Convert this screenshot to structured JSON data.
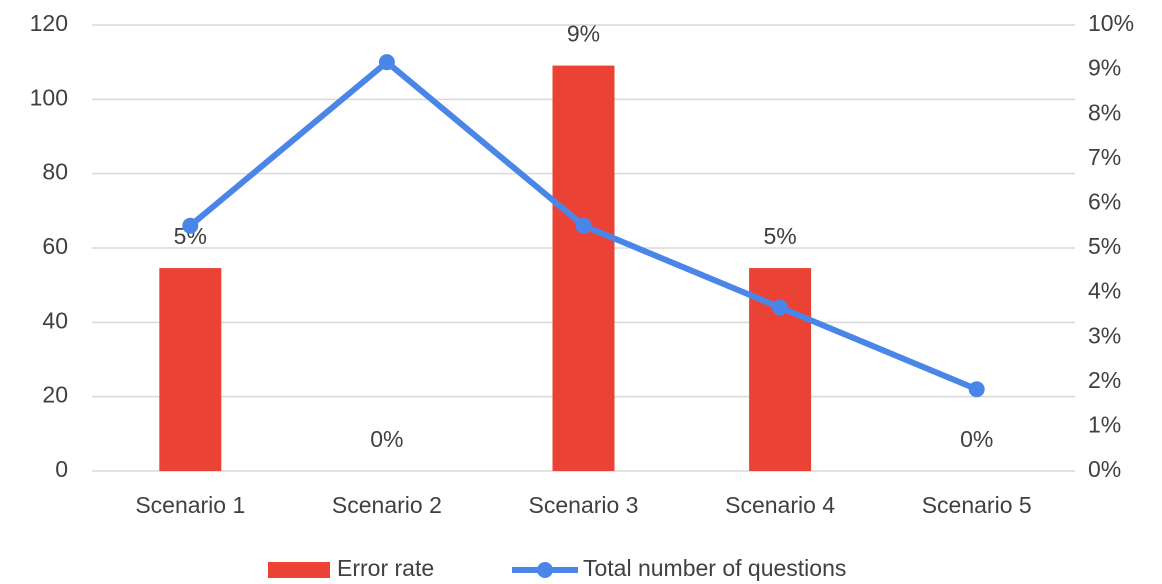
{
  "chart_data": {
    "type": "bar-line",
    "categories": [
      "Scenario 1",
      "Scenario 2",
      "Scenario 3",
      "Scenario 4",
      "Scenario 5"
    ],
    "series": [
      {
        "name": "Error rate",
        "type": "bar",
        "axis": "y2",
        "color": "#ea4335",
        "values": [
          4.55,
          0,
          9.09,
          4.55,
          0
        ],
        "value_labels": [
          "5%",
          "0%",
          "9%",
          "5%",
          "0%"
        ]
      },
      {
        "name": "Total number of questions",
        "type": "line",
        "color": "#4a86e8",
        "values": [
          66,
          110,
          66,
          44,
          22
        ]
      }
    ],
    "ylim": [
      0,
      120
    ],
    "yticks": [
      0,
      20,
      40,
      60,
      80,
      100,
      120
    ],
    "y2lim": [
      0,
      10
    ],
    "y2ticks": [
      {
        "value": 0,
        "label": "0%"
      },
      {
        "value": 1,
        "label": "1%"
      },
      {
        "value": 2,
        "label": "2%"
      },
      {
        "value": 3,
        "label": "3%"
      },
      {
        "value": 4,
        "label": "4%"
      },
      {
        "value": 5,
        "label": "5%"
      },
      {
        "value": 6,
        "label": "6%"
      },
      {
        "value": 7,
        "label": "7%"
      },
      {
        "value": 8,
        "label": "8%"
      },
      {
        "value": 9,
        "label": "9%"
      },
      {
        "value": 10,
        "label": "10%"
      }
    ],
    "grid": true,
    "legend": "bottom"
  }
}
